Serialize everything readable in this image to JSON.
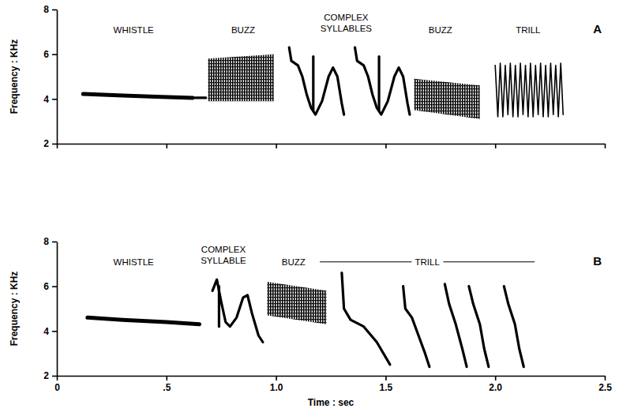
{
  "chart_data": [
    {
      "type": "spectrogram",
      "panel": "A",
      "ylabel": "Frequency : KHz",
      "color": "#000000",
      "xlim": [
        0,
        2.5
      ],
      "ylim": [
        2,
        8
      ],
      "xticks": [
        0,
        0.5,
        1,
        1.5,
        2,
        2.5
      ],
      "yticks": [
        2,
        4,
        6,
        8
      ],
      "tick_labels": "y",
      "annotations": [
        {
          "lines": [
            "WHISTLE"
          ],
          "x": 0.35,
          "y": 6.95
        },
        {
          "lines": [
            "BUZZ"
          ],
          "x": 0.85,
          "y": 6.95
        },
        {
          "lines": [
            "COMPLEX",
            "SYLLABLES"
          ],
          "x": 1.32,
          "y": 7.5
        },
        {
          "lines": [
            "BUZZ"
          ],
          "x": 1.75,
          "y": 6.95
        },
        {
          "lines": [
            "TRILL"
          ],
          "x": 2.15,
          "y": 6.95
        }
      ],
      "series": [
        {
          "type": "line",
          "x": [
            0.12,
            0.3,
            0.45,
            0.62
          ],
          "y": [
            4.22,
            4.15,
            4.1,
            4.05
          ]
        },
        {
          "type": "line",
          "x": [
            0.63,
            0.68
          ],
          "y": [
            4.05,
            4.05
          ]
        },
        {
          "type": "area",
          "x": [
            0.69,
            0.99
          ],
          "low": [
            3.9,
            3.9
          ],
          "high": [
            5.8,
            6.0
          ]
        },
        {
          "type": "line",
          "x": [
            1.06,
            1.07,
            1.1,
            1.12,
            1.14,
            1.16,
            1.18,
            1.21,
            1.24,
            1.26,
            1.28,
            1.3,
            1.31
          ],
          "y": [
            6.3,
            5.7,
            5.5,
            5.0,
            4.2,
            3.6,
            3.3,
            3.9,
            5.0,
            5.4,
            5.0,
            3.8,
            3.3
          ]
        },
        {
          "type": "line",
          "x": [
            1.17,
            1.17
          ],
          "y": [
            5.9,
            3.5
          ]
        },
        {
          "type": "line",
          "x": [
            1.36,
            1.37,
            1.4,
            1.42,
            1.44,
            1.46,
            1.48,
            1.51,
            1.54,
            1.56,
            1.58,
            1.6,
            1.61
          ],
          "y": [
            6.3,
            5.7,
            5.5,
            5.0,
            4.2,
            3.6,
            3.3,
            3.9,
            5.0,
            5.4,
            5.0,
            3.8,
            3.3
          ]
        },
        {
          "type": "line",
          "x": [
            1.47,
            1.47
          ],
          "y": [
            5.9,
            3.5
          ]
        },
        {
          "type": "area",
          "x": [
            1.63,
            1.93
          ],
          "low": [
            3.5,
            3.1
          ],
          "high": [
            4.9,
            4.6
          ]
        },
        {
          "type": "line",
          "x": [
            2.0,
            2.012,
            2.023,
            2.035,
            2.046,
            2.058,
            2.069,
            2.081,
            2.092,
            2.104,
            2.115,
            2.127,
            2.138,
            2.15,
            2.161,
            2.173,
            2.184,
            2.196,
            2.207,
            2.219,
            2.23,
            2.242,
            2.253,
            2.265,
            2.276,
            2.288,
            2.299,
            2.31
          ],
          "y": [
            5.5,
            3.2,
            5.6,
            3.2,
            5.5,
            3.3,
            5.6,
            3.2,
            5.5,
            3.2,
            5.6,
            3.3,
            5.5,
            3.2,
            5.6,
            3.2,
            5.5,
            3.3,
            5.6,
            3.2,
            5.5,
            3.2,
            5.6,
            3.3,
            5.5,
            3.2,
            5.6,
            3.3
          ]
        }
      ]
    },
    {
      "type": "spectrogram",
      "panel": "B",
      "ylabel": "Frequency : KHz",
      "xlabel": "Time : sec",
      "color": "#000000",
      "xlim": [
        0,
        2.5
      ],
      "ylim": [
        2,
        8
      ],
      "xticks": [
        0,
        {
          "value": 0.5,
          "label": ".5"
        },
        {
          "value": 1,
          "label": "1.0"
        },
        {
          "value": 1.5,
          "label": "1.5"
        },
        {
          "value": 2,
          "label": "2.0"
        },
        {
          "value": 2.5,
          "label": "2.5"
        }
      ],
      "yticks": [
        2,
        4,
        6,
        8
      ],
      "annotations": [
        {
          "lines": [
            "WHISTLE"
          ],
          "x": 0.35,
          "y": 6.95
        },
        {
          "lines": [
            "COMPLEX",
            "SYLLABLE"
          ],
          "x": 0.76,
          "y": 7.5
        },
        {
          "lines": [
            "BUZZ"
          ],
          "x": 1.08,
          "y": 6.95
        },
        {
          "lines": [
            "TRILL"
          ],
          "x": 1.69,
          "y": 6.95,
          "span": [
            1.2,
            2.18
          ]
        }
      ],
      "series": [
        {
          "type": "line",
          "x": [
            0.14,
            0.3,
            0.5,
            0.65
          ],
          "y": [
            4.6,
            4.5,
            4.4,
            4.3
          ]
        },
        {
          "type": "line",
          "x": [
            0.71,
            0.73,
            0.75,
            0.77,
            0.79,
            0.82,
            0.85,
            0.87,
            0.89,
            0.92,
            0.94
          ],
          "y": [
            5.8,
            6.3,
            5.3,
            4.4,
            4.2,
            4.6,
            5.5,
            5.6,
            4.8,
            3.8,
            3.5
          ]
        },
        {
          "type": "line",
          "x": [
            0.74,
            0.74
          ],
          "y": [
            6.0,
            4.2
          ]
        },
        {
          "type": "area",
          "x": [
            0.96,
            1.23
          ],
          "low": [
            4.7,
            4.3
          ],
          "high": [
            6.2,
            5.8
          ]
        },
        {
          "type": "line",
          "x": [
            1.3,
            1.31,
            1.34,
            1.4,
            1.46,
            1.52
          ],
          "y": [
            6.6,
            5.0,
            4.5,
            4.2,
            3.5,
            2.5
          ]
        },
        {
          "type": "line",
          "x": [
            1.58,
            1.59,
            1.62,
            1.65,
            1.68,
            1.7
          ],
          "y": [
            6.0,
            5.0,
            4.6,
            3.8,
            3.0,
            2.4
          ]
        },
        {
          "type": "line",
          "x": [
            1.77,
            1.79,
            1.82,
            1.85,
            1.87
          ],
          "y": [
            6.1,
            5.2,
            4.3,
            3.2,
            2.4
          ]
        },
        {
          "type": "line",
          "x": [
            1.88,
            1.9,
            1.93,
            1.95,
            1.97
          ],
          "y": [
            6.0,
            5.2,
            4.3,
            3.2,
            2.4
          ]
        },
        {
          "type": "line",
          "x": [
            2.04,
            2.06,
            2.09,
            2.11,
            2.13
          ],
          "y": [
            6.0,
            5.2,
            4.3,
            3.2,
            2.4
          ]
        }
      ]
    }
  ]
}
